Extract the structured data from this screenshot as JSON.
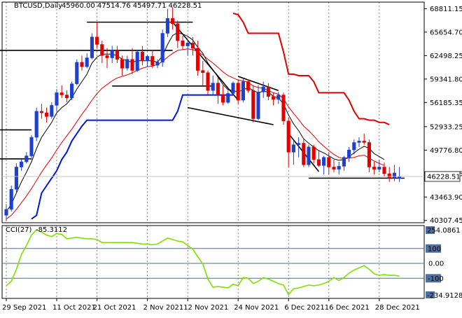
{
  "header": {
    "symbol": "BTCUSD,Daily",
    "ohlc": "45960.00 47514.76 45497.71 46228.51"
  },
  "price_badge": "46228.51",
  "indicator": {
    "name": "CCI(27)",
    "value": "-85.3112",
    "top_label": "254.0861",
    "bottom_label": "-234.9128",
    "level_labels": [
      "100",
      "0.00",
      "-100"
    ]
  },
  "colors": {
    "bull": "#1f3fd1",
    "bear": "#e00000",
    "ma_black": "#000000",
    "ma_red": "#e00000",
    "channel_red": "#e00000",
    "channel_blue": "#0018d8",
    "cci_line": "#7fe000",
    "level_line": "#4f6f9f",
    "grid": "#000000"
  },
  "chart_data": [
    {
      "type": "candlestick",
      "title": "BTCUSD,Daily",
      "y_tick_labels": [
        "68811.15",
        "65654.70",
        "62498.25",
        "59341.80",
        "56185.35",
        "52933.25",
        "49776.80",
        "46620.35",
        "43463.90",
        "40307.45"
      ],
      "ylim": [
        40000,
        69700
      ],
      "x_tick_labels": [
        "29 Sep 2021",
        "11 Oct 2021",
        "21 Oct 2021",
        "2 Nov 2021",
        "12 Nov 2021",
        "24 Nov 2021",
        "6 Dec 2021",
        "16 Dec 2021",
        "28 Dec 2021"
      ],
      "x_tick_index": [
        0,
        10,
        18,
        28,
        36,
        46,
        56,
        64,
        74
      ],
      "grid": "vertical dotted",
      "candles": [
        [
          41000,
          42500,
          40200,
          41800
        ],
        [
          41800,
          45000,
          41500,
          44500
        ],
        [
          44500,
          48000,
          44000,
          47500
        ],
        [
          47500,
          48600,
          47000,
          48200
        ],
        [
          48200,
          49500,
          48000,
          49000
        ],
        [
          49000,
          51800,
          48500,
          51500
        ],
        [
          51500,
          55500,
          51000,
          55000
        ],
        [
          55000,
          56000,
          54000,
          54800
        ],
        [
          54800,
          55500,
          53500,
          54300
        ],
        [
          54300,
          56200,
          54000,
          55800
        ],
        [
          55800,
          58000,
          55000,
          57500
        ],
        [
          57500,
          58500,
          56800,
          57200
        ],
        [
          57200,
          57800,
          56200,
          56800
        ],
        [
          56800,
          59000,
          56500,
          58700
        ],
        [
          58700,
          62000,
          58500,
          61600
        ],
        [
          61600,
          62500,
          60500,
          61000
        ],
        [
          61000,
          62800,
          60800,
          62200
        ],
        [
          62200,
          65500,
          62000,
          65000
        ],
        [
          65000,
          67000,
          63500,
          64000
        ],
        [
          64000,
          64500,
          61500,
          62500
        ],
        [
          62500,
          63500,
          60800,
          62200
        ],
        [
          62200,
          63800,
          61500,
          63200
        ],
        [
          63200,
          63800,
          61500,
          62000
        ],
        [
          62000,
          62500,
          59800,
          60800
        ],
        [
          60800,
          62500,
          60500,
          62000
        ],
        [
          62000,
          63500,
          60000,
          60500
        ],
        [
          60500,
          63200,
          60300,
          63000
        ],
        [
          63000,
          63800,
          61200,
          61800
        ],
        [
          61800,
          62600,
          61000,
          62400
        ],
        [
          62400,
          63300,
          60800,
          61200
        ],
        [
          61200,
          62000,
          60800,
          61600
        ],
        [
          61600,
          66000,
          61000,
          65500
        ],
        [
          65500,
          68800,
          65000,
          67500
        ],
        [
          67500,
          69000,
          66000,
          66800
        ],
        [
          66800,
          67200,
          63500,
          64500
        ],
        [
          64500,
          65200,
          63300,
          63800
        ],
        [
          63800,
          64500,
          62500,
          64200
        ],
        [
          64200,
          65000,
          62500,
          63500
        ],
        [
          63500,
          64500,
          59800,
          60500
        ],
        [
          60500,
          61800,
          58500,
          60200
        ],
        [
          60200,
          60500,
          57200,
          57800
        ],
        [
          57800,
          59800,
          57200,
          58800
        ],
        [
          58800,
          59500,
          56000,
          57200
        ],
        [
          57200,
          58500,
          55800,
          56200
        ],
        [
          56200,
          57800,
          56000,
          57400
        ],
        [
          57400,
          59000,
          57100,
          58800
        ],
        [
          58800,
          59200,
          56000,
          56500
        ],
        [
          56500,
          59500,
          56200,
          59000
        ],
        [
          59000,
          59300,
          57500,
          57800
        ],
        [
          57800,
          58500,
          53500,
          54000
        ],
        [
          54000,
          58500,
          53800,
          57600
        ],
        [
          57600,
          59000,
          56800,
          58300
        ],
        [
          58300,
          58800,
          56500,
          57000
        ],
        [
          57000,
          57500,
          55800,
          56600
        ],
        [
          56600,
          57600,
          56000,
          57200
        ],
        [
          57200,
          57500,
          53200,
          53700
        ],
        [
          53700,
          54200,
          47500,
          49500
        ],
        [
          49500,
          51000,
          47800,
          50500
        ],
        [
          50500,
          51500,
          48800,
          50700
        ],
        [
          50700,
          51200,
          47500,
          47800
        ],
        [
          47800,
          50500,
          47500,
          50200
        ],
        [
          50200,
          50500,
          48000,
          48500
        ],
        [
          48500,
          49800,
          47500,
          47700
        ],
        [
          47700,
          49000,
          46500,
          48800
        ],
        [
          48800,
          49500,
          46500,
          47500
        ],
        [
          47500,
          48500,
          46800,
          47200
        ],
        [
          47200,
          48200,
          46500,
          47600
        ],
        [
          47600,
          49000,
          47000,
          48800
        ],
        [
          48800,
          50200,
          48200,
          49800
        ],
        [
          49800,
          51200,
          49200,
          50800
        ],
        [
          50800,
          51500,
          50200,
          51000
        ],
        [
          51000,
          52000,
          50500,
          50800
        ],
        [
          50800,
          51200,
          46800,
          47500
        ],
        [
          47500,
          48200,
          46500,
          47200
        ],
        [
          47200,
          48500,
          46800,
          47500
        ],
        [
          47500,
          48100,
          46200,
          46600
        ],
        [
          46600,
          47500,
          45500,
          46000
        ],
        [
          46000,
          47800,
          45600,
          46700
        ],
        [
          45960,
          47514.76,
          45497.71,
          46228.51
        ]
      ],
      "lines": [
        {
          "label": "fast MA",
          "color": "#000000",
          "start_index": 0,
          "values": [
            41500,
            42500,
            44000,
            45500,
            46800,
            48200,
            50000,
            51500,
            52500,
            53500,
            54800,
            55500,
            56000,
            56800,
            58000,
            59000,
            60000,
            61500,
            62300,
            62700,
            62700,
            62700,
            62500,
            62000,
            61800,
            61600,
            61800,
            61800,
            61800,
            61800,
            61600,
            62500,
            64000,
            65200,
            65600,
            65400,
            65100,
            64600,
            63600,
            62800,
            61500,
            60600,
            59600,
            58600,
            57900,
            57800,
            57600,
            57900,
            58200,
            57800,
            57500,
            57700,
            57600,
            57000,
            56800,
            56000,
            54500,
            53300,
            52400,
            51300,
            50700,
            50200,
            49700,
            49400,
            49000,
            48600,
            48400,
            48500,
            48900,
            49400,
            49900,
            50300,
            50000,
            49300,
            48900,
            48500
          ]
        },
        {
          "label": "slow MA",
          "color": "#e00000",
          "start_index": 0,
          "values": [
            40500,
            41000,
            41800,
            42700,
            43600,
            44600,
            45700,
            46800,
            47800,
            48700,
            49800,
            50800,
            51700,
            52600,
            53600,
            54600,
            55500,
            56500,
            57400,
            58100,
            58600,
            59100,
            59500,
            59700,
            59900,
            60200,
            60500,
            60800,
            61000,
            61100,
            61300,
            61700,
            62300,
            62800,
            63200,
            63300,
            63400,
            63300,
            63000,
            62600,
            62000,
            61500,
            60900,
            60300,
            59800,
            59500,
            59200,
            59100,
            58900,
            58400,
            58200,
            58100,
            57800,
            57500,
            57300,
            56700,
            55600,
            54700,
            53900,
            53000,
            52400,
            51700,
            50900,
            50300,
            49700,
            49200,
            48800,
            48600,
            48700,
            48800,
            49000,
            49100,
            48700,
            48300,
            48000,
            47700
          ]
        },
        {
          "label": "upper channel",
          "color": "#e00000",
          "start_index": 45,
          "values": [
            68200,
            68000,
            67000,
            65500,
            65500,
            65500,
            65500,
            65500,
            65500,
            65500,
            63000,
            60000,
            60000,
            59800,
            59800,
            59800,
            59000,
            57500,
            57500,
            57500,
            57500,
            57500,
            57500,
            56500,
            55000,
            54000,
            54000,
            53800,
            53800,
            53500,
            53500,
            53200
          ]
        },
        {
          "label": "lower channel",
          "color": "#0018d8",
          "start_index": 0,
          "values": [
            null,
            null,
            null,
            null,
            null,
            40500,
            41000,
            44000,
            45000,
            46000,
            47000,
            48500,
            49500,
            51000,
            52000,
            53000,
            53800,
            53800,
            53800,
            53800,
            53800,
            53800,
            53800,
            53800,
            53800,
            53800,
            53800,
            53800,
            53800,
            53800,
            53800,
            53800,
            53800,
            53800,
            55000,
            57200,
            57200,
            57200,
            57200,
            57200,
            57200,
            57200,
            57200,
            57200,
            57200,
            57200
          ]
        }
      ],
      "segments": [
        {
          "from": [
            -2,
            63200
          ],
          "to": [
            33,
            63200
          ]
        },
        {
          "from": [
            16,
            67000
          ],
          "to": [
            37,
            67000
          ]
        },
        {
          "from": [
            21,
            58400
          ],
          "to": [
            41,
            58400
          ]
        },
        {
          "from": [
            -2,
            52500
          ],
          "to": [
            5,
            52500
          ]
        },
        {
          "from": [
            -2,
            48600
          ],
          "to": [
            5,
            48600
          ]
        },
        {
          "from": [
            33,
            67000
          ],
          "to": [
            46,
            56500
          ]
        },
        {
          "from": [
            36,
            55500
          ],
          "to": [
            53,
            53200
          ]
        },
        {
          "from": [
            46,
            59700
          ],
          "to": [
            54,
            57800
          ]
        },
        {
          "from": [
            56,
            52000
          ],
          "to": [
            62,
            46900
          ]
        },
        {
          "from": [
            60,
            46000
          ],
          "to": [
            79,
            46000
          ]
        }
      ],
      "last_price": 46228.51
    },
    {
      "type": "line",
      "title": "CCI(27)",
      "ylim": [
        -234.9128,
        254.0861
      ],
      "levels": [
        100,
        0,
        -100
      ],
      "series": [
        {
          "name": "CCI(27)",
          "start_index": 0,
          "values": [
            -150,
            -120,
            -40,
            60,
            120,
            190,
            225,
            210,
            190,
            180,
            200,
            195,
            165,
            170,
            175,
            170,
            165,
            165,
            160,
            140,
            140,
            140,
            140,
            140,
            140,
            140,
            135,
            130,
            130,
            125,
            130,
            150,
            170,
            160,
            150,
            145,
            120,
            95,
            45,
            -5,
            -105,
            -160,
            -155,
            -160,
            -165,
            -140,
            -150,
            -95,
            -100,
            -135,
            -120,
            -95,
            -105,
            -120,
            -135,
            -145,
            -210,
            -170,
            -165,
            -155,
            -145,
            -150,
            -145,
            -135,
            -120,
            -95,
            -115,
            -95,
            -65,
            -45,
            -30,
            -15,
            -40,
            -70,
            -80,
            -75,
            -80,
            -80,
            -85.3112
          ]
        }
      ]
    }
  ]
}
